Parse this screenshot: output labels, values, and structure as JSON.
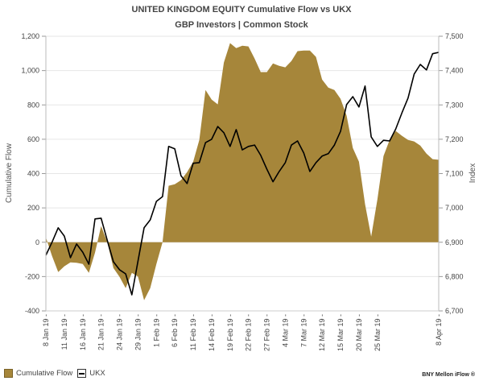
{
  "chart_data": {
    "type": "area+line",
    "title": "UNITED KINGDOM  EQUITY Cumulative Flow vs  UKX",
    "subtitle": "GBP Investors | Common Stock",
    "ylabel": "Cumulative Flow",
    "y2label": "Index",
    "ylim": [
      -400,
      1200
    ],
    "y2lim": [
      6700,
      7500
    ],
    "yticks": [
      "1,200",
      "1,000",
      "800",
      "600",
      "400",
      "200",
      "0",
      "-200",
      "-400"
    ],
    "yticks_values": [
      1200,
      1000,
      800,
      600,
      400,
      200,
      0,
      -200,
      -400
    ],
    "y2ticks": [
      "7,500",
      "7,400",
      "7,300",
      "7,200",
      "7,100",
      "7,000",
      "6,900",
      "6,800",
      "6,700"
    ],
    "y2ticks_values": [
      7500,
      7400,
      7300,
      7200,
      7100,
      7000,
      6900,
      6800,
      6700
    ],
    "xticks": [
      {
        "index": 0,
        "label": "8 Jan 19 -"
      },
      {
        "index": 3,
        "label": "11 Jan 19 -"
      },
      {
        "index": 6,
        "label": "16 Jan 19 -"
      },
      {
        "index": 9,
        "label": "21 Jan 19 -"
      },
      {
        "index": 12,
        "label": "24 Jan 19 -"
      },
      {
        "index": 15,
        "label": "29 Jan 19 -"
      },
      {
        "index": 18,
        "label": "1 Feb 19 -"
      },
      {
        "index": 21,
        "label": "6 Feb 19 -"
      },
      {
        "index": 24,
        "label": "11 Feb 19 -"
      },
      {
        "index": 27,
        "label": "14 Feb 19 -"
      },
      {
        "index": 30,
        "label": "19 Feb 19 -"
      },
      {
        "index": 33,
        "label": "22 Feb 19 -"
      },
      {
        "index": 36,
        "label": "27 Feb 19 -"
      },
      {
        "index": 39,
        "label": "4 Mar 19 -"
      },
      {
        "index": 42,
        "label": "7 Mar 19 -"
      },
      {
        "index": 45,
        "label": "12 Mar 19 -"
      },
      {
        "index": 48,
        "label": "15 Mar 19 -"
      },
      {
        "index": 51,
        "label": "20 Mar 19 -"
      },
      {
        "index": 54,
        "label": "25 Mar 19 -"
      },
      {
        "index": 64,
        "label": "8 Apr 19 -"
      }
    ],
    "grid": true,
    "legend_position": "bottom-left",
    "series": [
      {
        "name": "Cumulative Flow",
        "type": "area",
        "color": "#a6863a",
        "axis": "left",
        "values": [
          28,
          -80,
          -174,
          -140,
          -117,
          -120,
          -127,
          -178,
          -61,
          94,
          0,
          -150,
          -202,
          -267,
          -178,
          -200,
          -338,
          -267,
          -127,
          0,
          329,
          338,
          361,
          408,
          469,
          596,
          887,
          831,
          803,
          1047,
          1160,
          1131,
          1145,
          1141,
          1070,
          991,
          991,
          1042,
          1028,
          1019,
          1056,
          1113,
          1117,
          1117,
          1080,
          948,
          901,
          887,
          836,
          737,
          549,
          469,
          221,
          33,
          249,
          502,
          596,
          648,
          620,
          596,
          587,
          563,
          516,
          484,
          480
        ]
      },
      {
        "name": "UKX",
        "type": "line",
        "color": "#000000",
        "axis": "right",
        "values": [
          6862,
          6900,
          6942,
          6918,
          6855,
          6895,
          6871,
          6836,
          6968,
          6970,
          6905,
          6843,
          6820,
          6808,
          6747,
          6845,
          6942,
          6965,
          7019,
          7033,
          7179,
          7172,
          7094,
          7071,
          7130,
          7132,
          7190,
          7200,
          7237,
          7219,
          7179,
          7228,
          7169,
          7179,
          7183,
          7153,
          7113,
          7076,
          7106,
          7132,
          7183,
          7195,
          7160,
          7106,
          7132,
          7151,
          7158,
          7183,
          7223,
          7301,
          7324,
          7294,
          7355,
          7207,
          7179,
          7197,
          7195,
          7230,
          7277,
          7320,
          7390,
          7418,
          7402,
          7449,
          7453
        ]
      }
    ]
  },
  "legend": {
    "flow_label": "Cumulative Flow",
    "ukx_label": "UKX"
  },
  "brand": "BNY Mellon iFlow ®"
}
